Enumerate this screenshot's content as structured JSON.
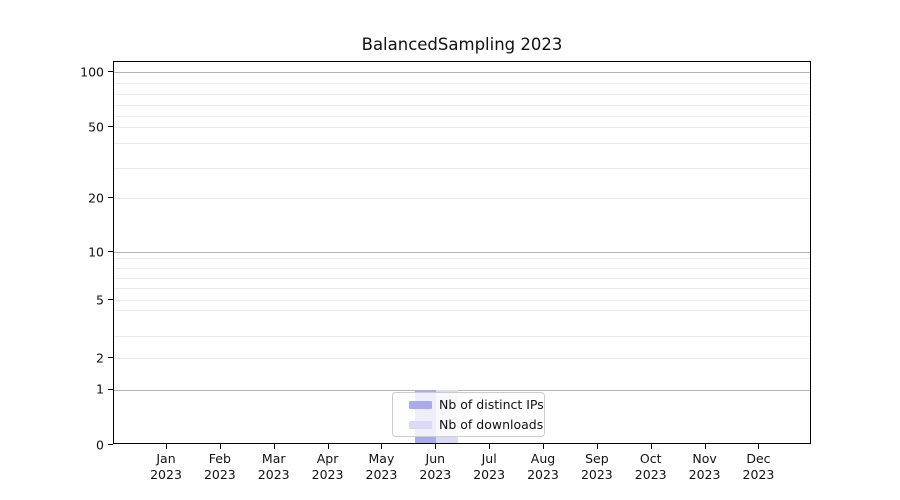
{
  "title": "BalancedSampling 2023",
  "colors": {
    "bar_distinct_ips": "#aaaaee",
    "bar_downloads": "#dadaf6",
    "grid_major": "#b4b4b4",
    "grid_minor": "#ececec",
    "axis_line": "#000000",
    "legend_border": "#cccccc",
    "text": "#111111"
  },
  "chart_data": {
    "type": "bar",
    "title": "BalancedSampling 2023",
    "categories": [
      "Jan",
      "Feb",
      "Mar",
      "Apr",
      "May",
      "Jun",
      "Jul",
      "Aug",
      "Sep",
      "Oct",
      "Nov",
      "Dec"
    ],
    "x_tick_year": "2023",
    "series": [
      {
        "name": "Nb of distinct IPs",
        "color": "#aaaaee",
        "values": [
          0,
          0,
          0,
          0,
          0,
          1,
          0,
          0,
          0,
          0,
          0,
          0
        ]
      },
      {
        "name": "Nb of downloads",
        "color": "#dadaf6",
        "values": [
          0,
          0,
          0,
          0,
          0,
          1,
          0,
          0,
          0,
          0,
          0,
          0
        ]
      }
    ],
    "y_ticks": [
      "100",
      "50",
      "20",
      "10",
      "5",
      "2",
      "1",
      "0"
    ],
    "y_scale": "symlog",
    "ylim": [
      0,
      110
    ],
    "xlabel": "",
    "ylabel": "",
    "grid": "horizontal-only",
    "legend_position": "bottom-center"
  }
}
